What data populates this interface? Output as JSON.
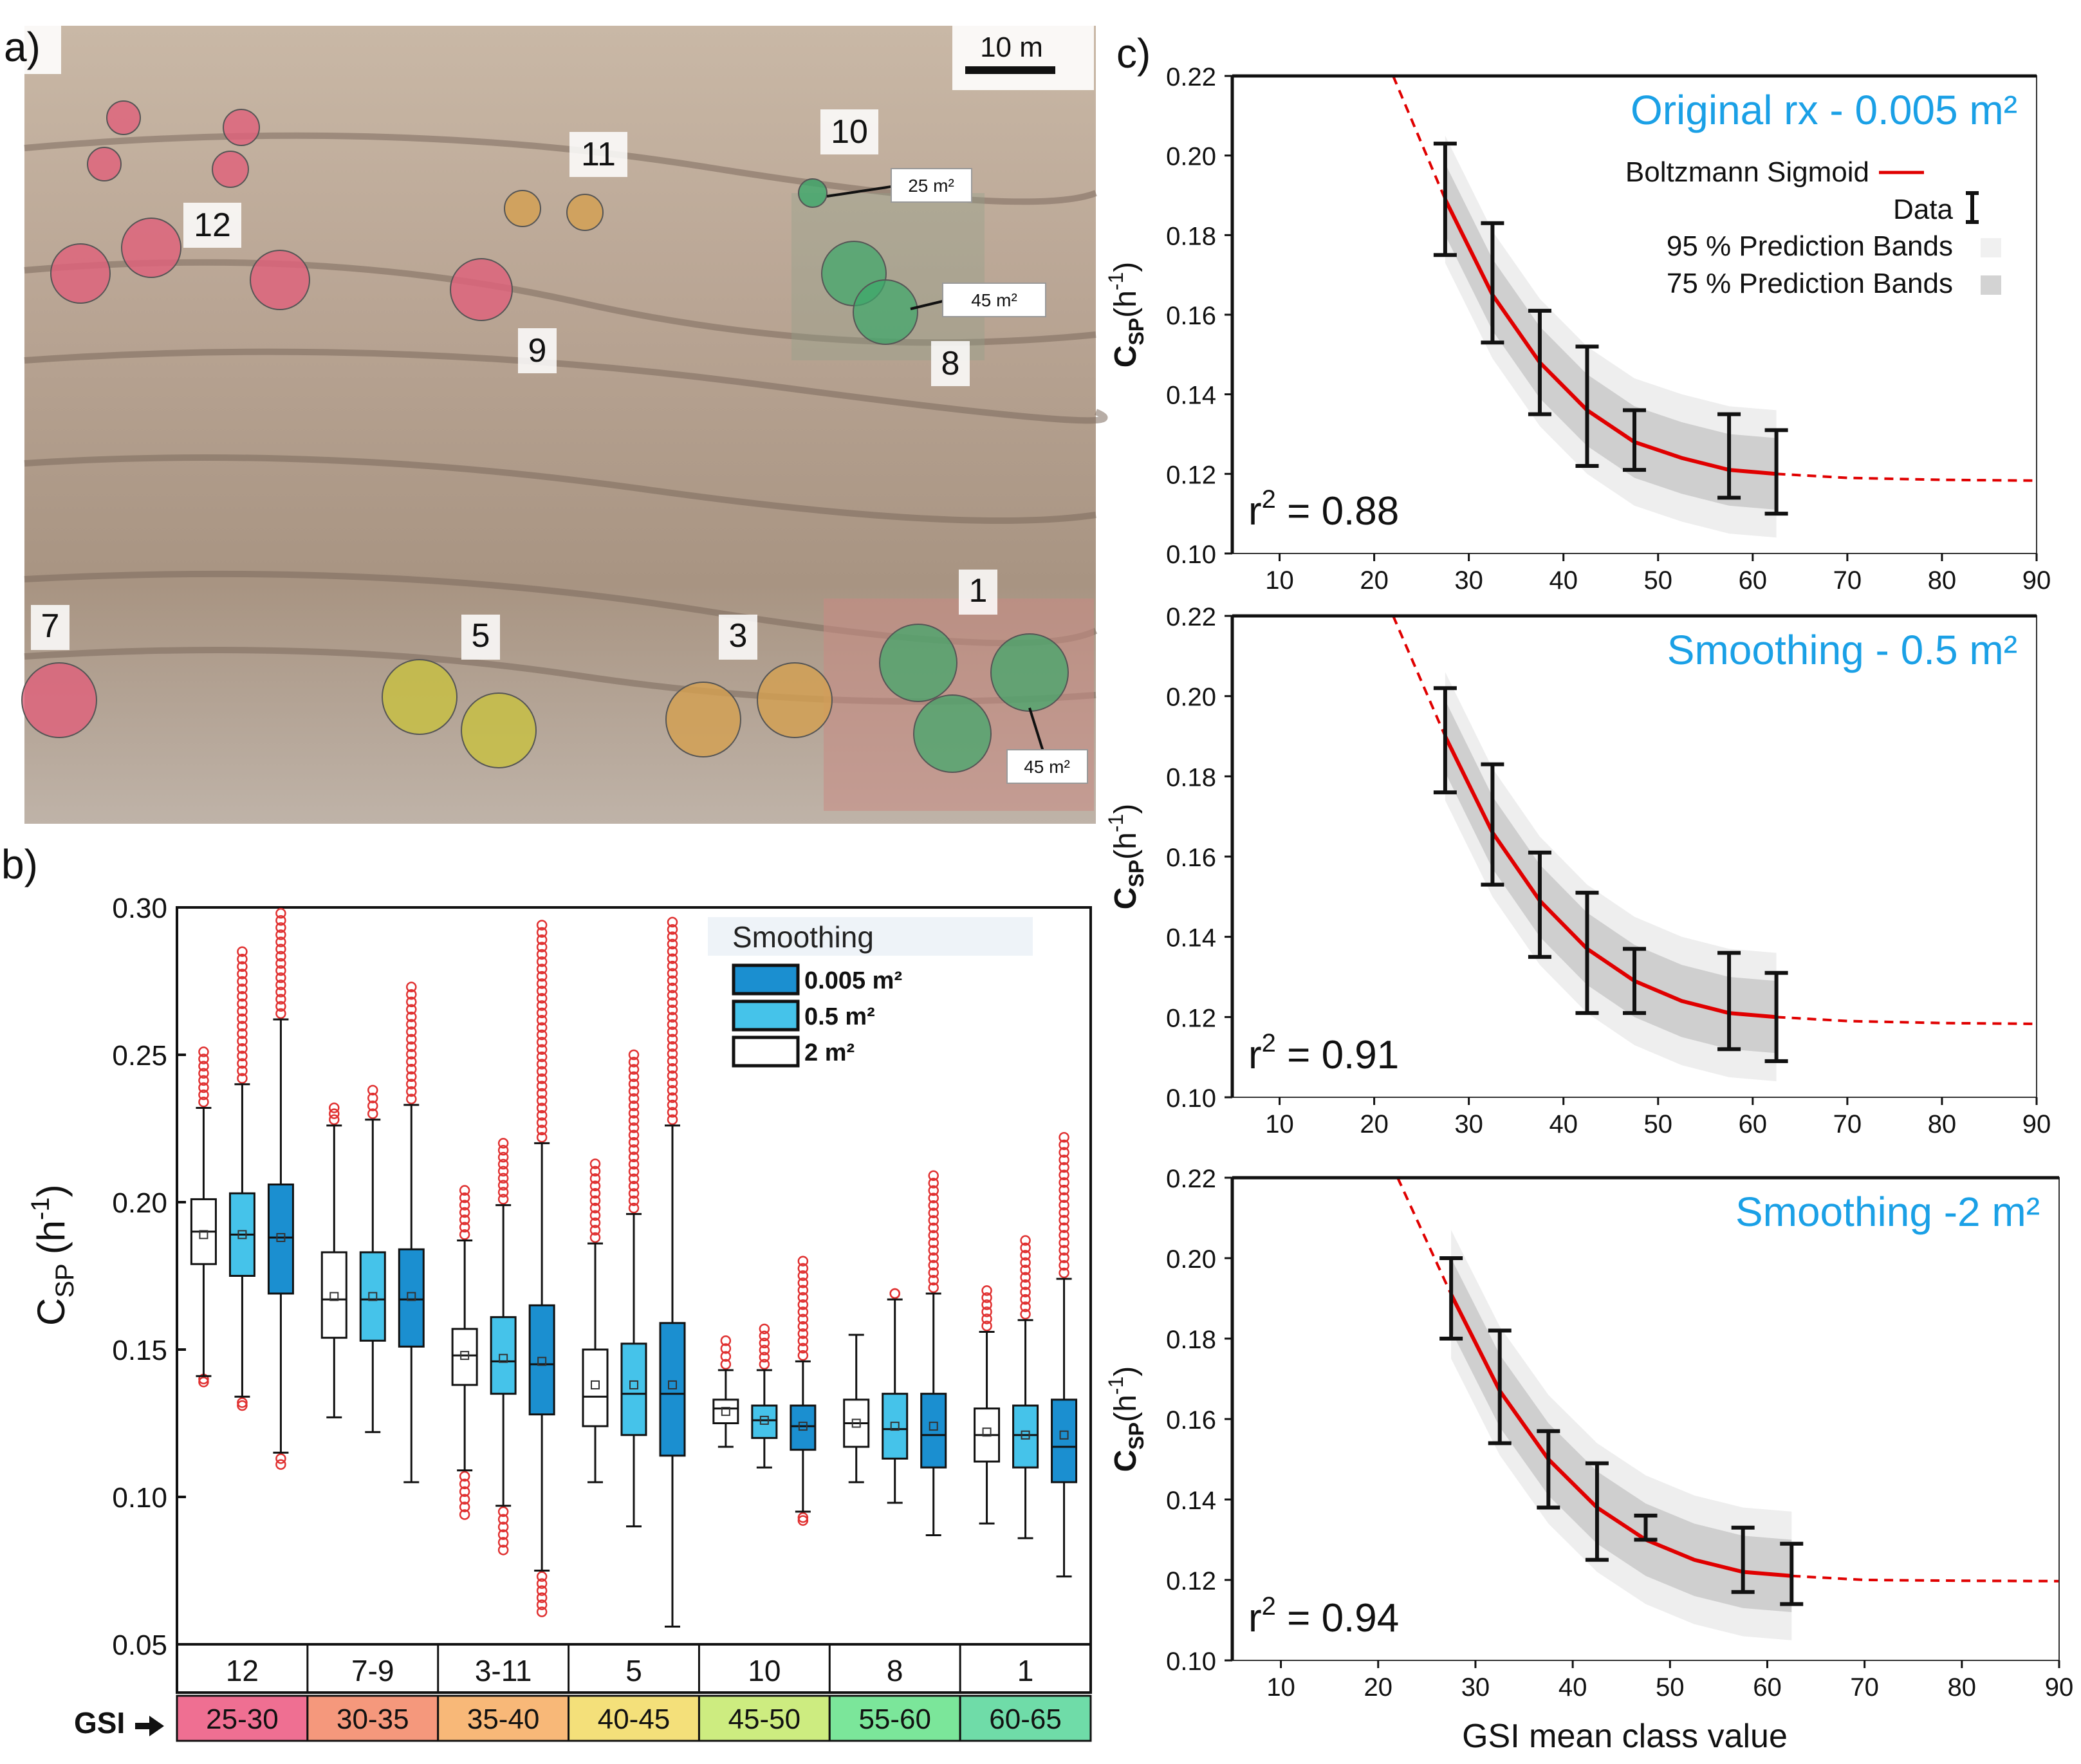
{
  "panels": {
    "a": {
      "label": "a)",
      "scale_bar": "10 m",
      "areas": [
        "1",
        "3",
        "5",
        "7",
        "8",
        "9",
        "10",
        "11",
        "12"
      ],
      "size_callouts": [
        "25 m²",
        "45 m²",
        "45 m²"
      ]
    },
    "b": {
      "label": "b)",
      "legend_title": "Smoothing",
      "legend_items": [
        {
          "label": "0.005 m²",
          "color": "#1b8fd0"
        },
        {
          "label": "0.5 m²",
          "color": "#45c3ea"
        },
        {
          "label": "2 m²",
          "color": "#ffffff"
        }
      ]
    },
    "c": {
      "label": "c)"
    }
  },
  "colors": {
    "red_zone": "#e0607a",
    "orange_zone": "#d4a050",
    "yellow_zone": "#c8c040",
    "green_zone": "#3ca86a",
    "fit_line": "#e00000",
    "title_blue": "#1aa0e6",
    "outlier": "#e03030"
  },
  "chart_data": [
    {
      "type": "box",
      "panel": "b",
      "ylabel": "C_SP (h-1)",
      "ylabel_main": "C",
      "ylabel_sub": "SP",
      "ylabel_paren": "(h",
      "ylabel_sup": "-1",
      "ylabel_close": ")",
      "ylim": [
        0.05,
        0.3
      ],
      "yticks": [
        0.05,
        0.1,
        0.15,
        0.2,
        0.25,
        0.3
      ],
      "ytick_labels": [
        "0.05",
        "0.10",
        "0.15",
        "0.20",
        "0.25",
        "0.30"
      ],
      "groups": [
        "12",
        "7-9",
        "3-11",
        "5",
        "10",
        "8",
        "1"
      ],
      "gsi_label": "GSI",
      "gsi_ranges": [
        "25-30",
        "30-35",
        "35-40",
        "40-45",
        "45-50",
        "55-60",
        "60-65"
      ],
      "gsi_colors": [
        "#ef6f92",
        "#f5987c",
        "#f8b878",
        "#f4e07a",
        "#cdec80",
        "#7be69a",
        "#6fdca8"
      ],
      "series": [
        {
          "name": "2 m²",
          "boxes": [
            {
              "whislo": 0.141,
              "q1": 0.179,
              "med": 0.19,
              "q3": 0.201,
              "whishi": 0.232,
              "mean": 0.189,
              "out_lo": 0.14,
              "out_hi": 0.251
            },
            {
              "whislo": 0.127,
              "q1": 0.154,
              "med": 0.167,
              "q3": 0.183,
              "whishi": 0.226,
              "mean": 0.168,
              "out_lo": null,
              "out_hi": 0.232
            },
            {
              "whislo": 0.109,
              "q1": 0.138,
              "med": 0.148,
              "q3": 0.157,
              "whishi": 0.187,
              "mean": 0.148,
              "out_lo": 0.094,
              "out_hi": 0.204
            },
            {
              "whislo": 0.105,
              "q1": 0.124,
              "med": 0.134,
              "q3": 0.15,
              "whishi": 0.186,
              "mean": 0.138,
              "out_lo": null,
              "out_hi": 0.213
            },
            {
              "whislo": 0.117,
              "q1": 0.125,
              "med": 0.13,
              "q3": 0.133,
              "whishi": 0.143,
              "mean": 0.129,
              "out_lo": null,
              "out_hi": 0.153
            },
            {
              "whislo": 0.105,
              "q1": 0.117,
              "med": 0.125,
              "q3": 0.133,
              "whishi": 0.155,
              "mean": 0.125,
              "out_lo": null,
              "out_hi": null
            },
            {
              "whislo": 0.091,
              "q1": 0.112,
              "med": 0.121,
              "q3": 0.13,
              "whishi": 0.156,
              "mean": 0.122,
              "out_lo": null,
              "out_hi": 0.17
            }
          ]
        },
        {
          "name": "0.5 m²",
          "boxes": [
            {
              "whislo": 0.134,
              "q1": 0.175,
              "med": 0.189,
              "q3": 0.203,
              "whishi": 0.24,
              "mean": 0.189,
              "out_lo": 0.131,
              "out_hi": 0.285
            },
            {
              "whislo": 0.122,
              "q1": 0.153,
              "med": 0.167,
              "q3": 0.183,
              "whishi": 0.228,
              "mean": 0.168,
              "out_lo": null,
              "out_hi": 0.238
            },
            {
              "whislo": 0.097,
              "q1": 0.135,
              "med": 0.146,
              "q3": 0.161,
              "whishi": 0.199,
              "mean": 0.147,
              "out_lo": 0.082,
              "out_hi": 0.22
            },
            {
              "whislo": 0.09,
              "q1": 0.121,
              "med": 0.135,
              "q3": 0.152,
              "whishi": 0.196,
              "mean": 0.138,
              "out_lo": null,
              "out_hi": 0.25
            },
            {
              "whislo": 0.11,
              "q1": 0.12,
              "med": 0.126,
              "q3": 0.131,
              "whishi": 0.143,
              "mean": 0.126,
              "out_lo": null,
              "out_hi": 0.157
            },
            {
              "whislo": 0.098,
              "q1": 0.113,
              "med": 0.123,
              "q3": 0.135,
              "whishi": 0.167,
              "mean": 0.124,
              "out_lo": null,
              "out_hi": 0.169
            },
            {
              "whislo": 0.086,
              "q1": 0.11,
              "med": 0.121,
              "q3": 0.131,
              "whishi": 0.16,
              "mean": 0.121,
              "out_lo": null,
              "out_hi": 0.187
            }
          ]
        },
        {
          "name": "0.005 m²",
          "boxes": [
            {
              "whislo": 0.115,
              "q1": 0.169,
              "med": 0.188,
              "q3": 0.206,
              "whishi": 0.262,
              "mean": 0.188,
              "out_lo": 0.111,
              "out_hi": 0.298
            },
            {
              "whislo": 0.105,
              "q1": 0.151,
              "med": 0.167,
              "q3": 0.184,
              "whishi": 0.233,
              "mean": 0.168,
              "out_lo": null,
              "out_hi": 0.273
            },
            {
              "whislo": 0.075,
              "q1": 0.128,
              "med": 0.145,
              "q3": 0.165,
              "whishi": 0.22,
              "mean": 0.146,
              "out_lo": 0.061,
              "out_hi": 0.294
            },
            {
              "whislo": 0.056,
              "q1": 0.114,
              "med": 0.135,
              "q3": 0.159,
              "whishi": 0.226,
              "mean": 0.138,
              "out_lo": null,
              "out_hi": 0.295
            },
            {
              "whislo": 0.095,
              "q1": 0.116,
              "med": 0.124,
              "q3": 0.131,
              "whishi": 0.146,
              "mean": 0.124,
              "out_lo": 0.092,
              "out_hi": 0.18
            },
            {
              "whislo": 0.087,
              "q1": 0.11,
              "med": 0.121,
              "q3": 0.135,
              "whishi": 0.169,
              "mean": 0.124,
              "out_lo": null,
              "out_hi": 0.209
            },
            {
              "whislo": 0.073,
              "q1": 0.105,
              "med": 0.117,
              "q3": 0.133,
              "whishi": 0.174,
              "mean": 0.121,
              "out_lo": null,
              "out_hi": 0.222
            }
          ]
        }
      ]
    },
    {
      "type": "line",
      "panel": "c1",
      "title": "Original rx - 0.005 m²",
      "r2": "r² = 0.88",
      "r2_prefix": "r",
      "r2_sup": "2",
      "r2_value": " = 0.88",
      "xlim": [
        5,
        90
      ],
      "ylim": [
        0.1,
        0.22
      ],
      "xticks": [
        10,
        20,
        30,
        40,
        50,
        60,
        70,
        80,
        90
      ],
      "xtick_labels": [
        "10",
        "20",
        "30",
        "40",
        "50",
        "60",
        "70",
        "80",
        "90"
      ],
      "yticks": [
        0.1,
        0.12,
        0.14,
        0.16,
        0.18,
        0.2,
        0.22
      ],
      "ytick_labels": [
        "0.10",
        "0.12",
        "0.14",
        "0.16",
        "0.18",
        "0.20",
        "0.22"
      ],
      "ylabel": "C_SP(h-1)",
      "legend": [
        "Boltzmann Sigmoid",
        "Data",
        "95 % Prediction Bands",
        "75 % Prediction Bands"
      ],
      "data_x": [
        27.5,
        32.5,
        37.5,
        42.5,
        47.5,
        57.5,
        62.5
      ],
      "data_lo": [
        0.175,
        0.153,
        0.135,
        0.122,
        0.121,
        0.114,
        0.11
      ],
      "data_hi": [
        0.203,
        0.183,
        0.161,
        0.152,
        0.136,
        0.135,
        0.131
      ],
      "fit_x": [
        22,
        27.5,
        32.5,
        37.5,
        42.5,
        47.5,
        52.5,
        57.5,
        62.5,
        70,
        80,
        90
      ],
      "fit_y": [
        0.22,
        0.189,
        0.165,
        0.148,
        0.136,
        0.128,
        0.124,
        0.121,
        0.12,
        0.119,
        0.1185,
        0.1183
      ]
    },
    {
      "type": "line",
      "panel": "c2",
      "title": "Smoothing - 0.5 m²",
      "r2": "r² = 0.91",
      "r2_prefix": "r",
      "r2_sup": "2",
      "r2_value": " = 0.91",
      "xlim": [
        5,
        90
      ],
      "ylim": [
        0.1,
        0.22
      ],
      "xticks": [
        10,
        20,
        30,
        40,
        50,
        60,
        70,
        80,
        90
      ],
      "xtick_labels": [
        "10",
        "20",
        "30",
        "40",
        "50",
        "60",
        "70",
        "80",
        "90"
      ],
      "yticks": [
        0.1,
        0.12,
        0.14,
        0.16,
        0.18,
        0.2,
        0.22
      ],
      "ytick_labels": [
        "0.10",
        "0.12",
        "0.14",
        "0.16",
        "0.18",
        "0.20",
        "0.22"
      ],
      "ylabel": "C_SP(h-1)",
      "data_x": [
        27.5,
        32.5,
        37.5,
        42.5,
        47.5,
        57.5,
        62.5
      ],
      "data_lo": [
        0.176,
        0.153,
        0.135,
        0.121,
        0.121,
        0.112,
        0.109
      ],
      "data_hi": [
        0.202,
        0.183,
        0.161,
        0.151,
        0.137,
        0.136,
        0.131
      ],
      "fit_x": [
        22,
        27.5,
        32.5,
        37.5,
        42.5,
        47.5,
        52.5,
        57.5,
        62.5,
        70,
        80,
        90
      ],
      "fit_y": [
        0.22,
        0.19,
        0.166,
        0.149,
        0.137,
        0.129,
        0.124,
        0.121,
        0.12,
        0.119,
        0.1185,
        0.1183
      ]
    },
    {
      "type": "line",
      "panel": "c3",
      "title": "Smoothing -2 m²",
      "r2": "r² = 0.94",
      "r2_prefix": "r",
      "r2_sup": "2",
      "r2_value": " = 0.94",
      "xlabel": "GSI mean class value",
      "xlim": [
        5,
        90
      ],
      "ylim": [
        0.1,
        0.22
      ],
      "xticks": [
        10,
        20,
        30,
        40,
        50,
        60,
        70,
        80,
        90
      ],
      "xtick_labels": [
        "10",
        "20",
        "30",
        "40",
        "50",
        "60",
        "70",
        "80",
        "90"
      ],
      "yticks": [
        0.1,
        0.12,
        0.14,
        0.16,
        0.18,
        0.2,
        0.22
      ],
      "ytick_labels": [
        "0.10",
        "0.12",
        "0.14",
        "0.16",
        "0.18",
        "0.20",
        "0.22"
      ],
      "ylabel": "C_SP(h-1)",
      "data_x": [
        27.5,
        32.5,
        37.5,
        42.5,
        47.5,
        57.5,
        62.5
      ],
      "data_lo": [
        0.18,
        0.154,
        0.138,
        0.125,
        0.13,
        0.117,
        0.114
      ],
      "data_hi": [
        0.2,
        0.182,
        0.157,
        0.149,
        0.136,
        0.133,
        0.129
      ],
      "fit_x": [
        22,
        27.5,
        32.5,
        37.5,
        42.5,
        47.5,
        52.5,
        57.5,
        62.5,
        70,
        80,
        90
      ],
      "fit_y": [
        0.22,
        0.191,
        0.167,
        0.15,
        0.138,
        0.13,
        0.125,
        0.122,
        0.121,
        0.12,
        0.1198,
        0.1197
      ]
    }
  ]
}
